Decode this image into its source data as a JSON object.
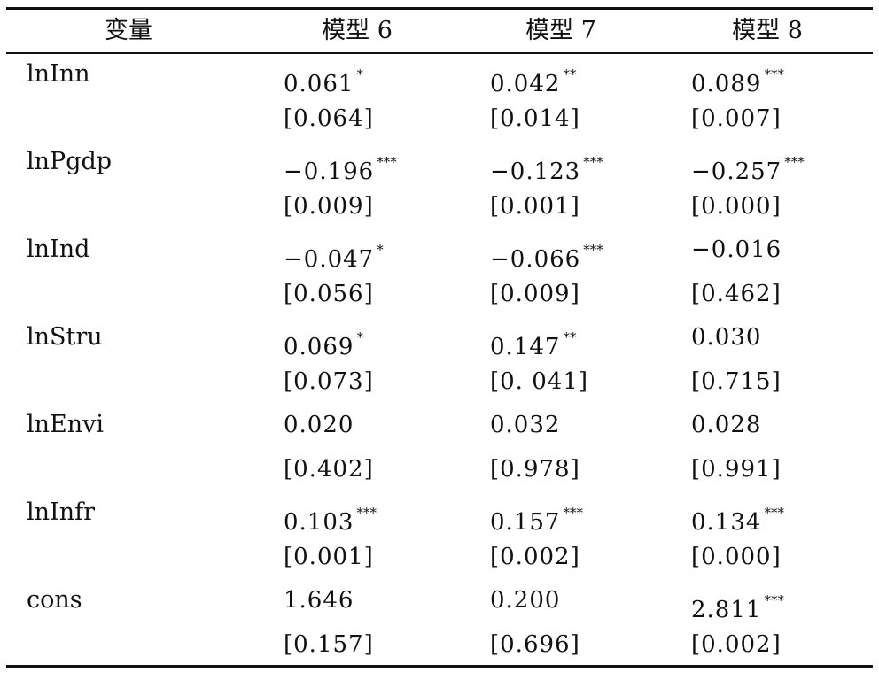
{
  "table": {
    "headers": [
      "变量",
      "模型 6",
      "模型 7",
      "模型 8"
    ],
    "rows": [
      {
        "variable": "lnInn",
        "coef": [
          {
            "value": "0.061",
            "stars": "*"
          },
          {
            "value": "0.042",
            "stars": "**"
          },
          {
            "value": "0.089",
            "stars": "***"
          }
        ],
        "pvalue": [
          "[0.064]",
          "[0.014]",
          "[0.007]"
        ]
      },
      {
        "variable": "lnPgdp",
        "coef": [
          {
            "value": "−0.196",
            "stars": "***"
          },
          {
            "value": "−0.123",
            "stars": "***"
          },
          {
            "value": "−0.257",
            "stars": "***"
          }
        ],
        "pvalue": [
          "[0.009]",
          "[0.001]",
          "[0.000]"
        ]
      },
      {
        "variable": "lnInd",
        "coef": [
          {
            "value": "−0.047",
            "stars": "*"
          },
          {
            "value": "−0.066",
            "stars": "***"
          },
          {
            "value": "−0.016",
            "stars": ""
          }
        ],
        "pvalue": [
          "[0.056]",
          "[0.009]",
          "[0.462]"
        ]
      },
      {
        "variable": "lnStru",
        "coef": [
          {
            "value": "0.069",
            "stars": "*"
          },
          {
            "value": "0.147",
            "stars": "**"
          },
          {
            "value": "0.030",
            "stars": ""
          }
        ],
        "pvalue": [
          "[0.073]",
          "[0. 041]",
          "[0.715]"
        ]
      },
      {
        "variable": "lnEnvi",
        "coef": [
          {
            "value": "0.020",
            "stars": ""
          },
          {
            "value": "0.032",
            "stars": ""
          },
          {
            "value": "0.028",
            "stars": ""
          }
        ],
        "pvalue": [
          "[0.402]",
          "[0.978]",
          "[0.991]"
        ]
      },
      {
        "variable": "lnInfr",
        "coef": [
          {
            "value": "0.103",
            "stars": "***"
          },
          {
            "value": "0.157",
            "stars": "***"
          },
          {
            "value": "0.134",
            "stars": "***"
          }
        ],
        "pvalue": [
          "[0.001]",
          "[0.002]",
          "[0.000]"
        ]
      },
      {
        "variable": "cons",
        "coef": [
          {
            "value": "1.646",
            "stars": ""
          },
          {
            "value": "0.200",
            "stars": ""
          },
          {
            "value": "2.811",
            "stars": "***"
          }
        ],
        "pvalue": [
          "[0.157]",
          "[0.696]",
          "[0.002]"
        ]
      }
    ]
  }
}
